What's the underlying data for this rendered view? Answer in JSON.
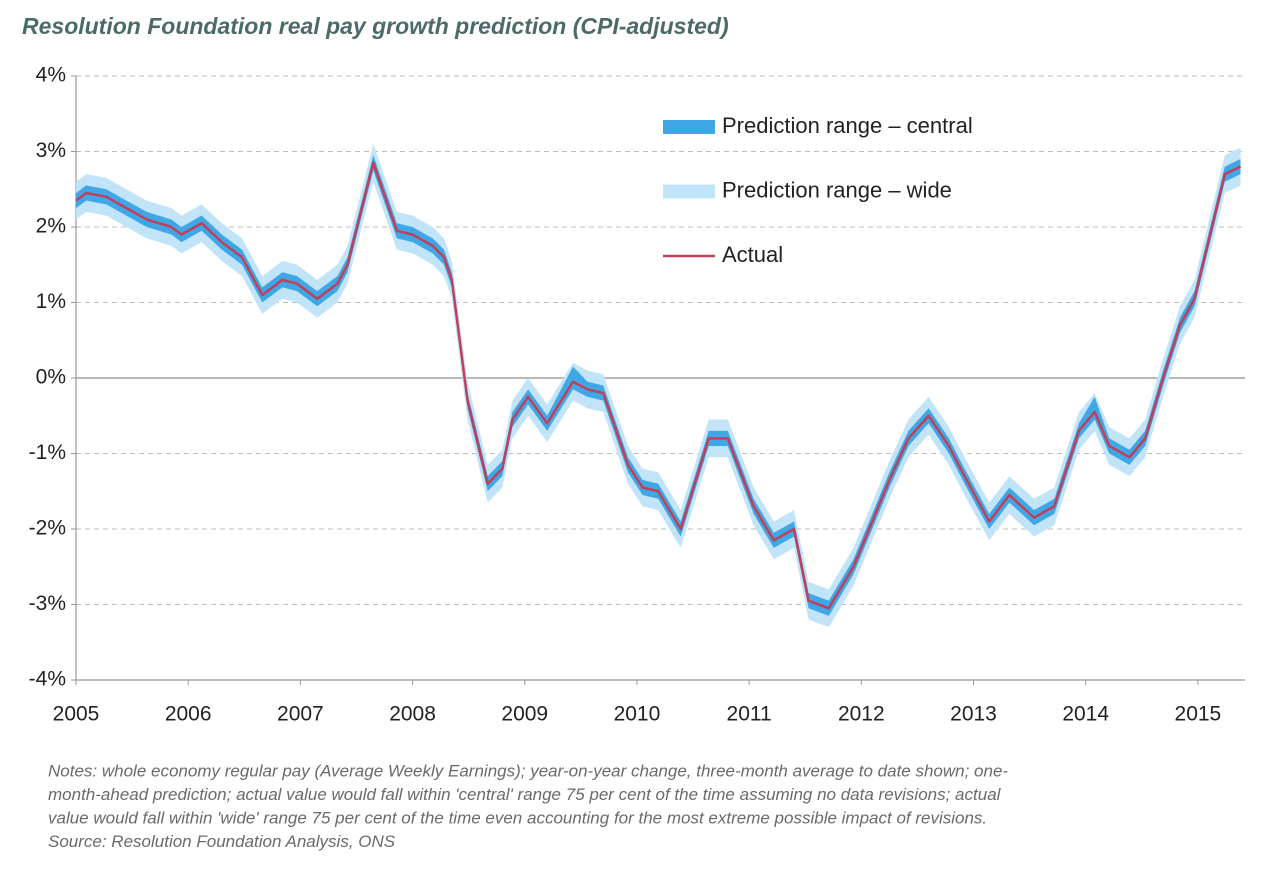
{
  "chart_data": {
    "type": "line",
    "title": "Resolution Foundation real pay growth prediction (CPI-adjusted)",
    "notes": [
      "Notes: whole economy regular pay (Average Weekly Earnings); year-on-year change, three-month average to date shown; one-",
      "month-ahead prediction; actual value would fall within 'central' range 75 per cent of the time assuming no data revisions; actual",
      "value would fall within 'wide' range 75 per cent of the time even accounting for the most extreme possible impact of revisions.",
      "Source: Resolution Foundation Analysis, ONS"
    ],
    "x": [
      2005.0,
      2005.09,
      2005.27,
      2005.45,
      2005.63,
      2005.85,
      2005.94,
      2006.12,
      2006.3,
      2006.48,
      2006.66,
      2006.84,
      2006.97,
      2007.15,
      2007.33,
      2007.42,
      2007.65,
      2007.86,
      2008.0,
      2008.18,
      2008.28,
      2008.35,
      2008.49,
      2008.67,
      2008.8,
      2008.89,
      2009.03,
      2009.2,
      2009.43,
      2009.56,
      2009.7,
      2009.92,
      2010.05,
      2010.19,
      2010.39,
      2010.64,
      2010.81,
      2011.04,
      2011.22,
      2011.4,
      2011.53,
      2011.71,
      2011.93,
      2012.07,
      2012.25,
      2012.42,
      2012.6,
      2012.78,
      2012.92,
      2013.14,
      2013.32,
      2013.54,
      2013.72,
      2013.94,
      2014.08,
      2014.21,
      2014.39,
      2014.53,
      2014.69,
      2014.84,
      2014.97,
      2015.24,
      2015.38
    ],
    "series": [
      {
        "name": "Prediction range – wide",
        "color": "#c2e4f8",
        "lower": [
          2.1,
          2.2,
          2.15,
          2.0,
          1.85,
          1.75,
          1.65,
          1.8,
          1.55,
          1.35,
          0.85,
          1.05,
          1.0,
          0.8,
          1.0,
          1.25,
          2.6,
          1.7,
          1.65,
          1.5,
          1.35,
          1.05,
          -0.55,
          -1.65,
          -1.45,
          -0.8,
          -0.5,
          -0.85,
          -0.3,
          -0.4,
          -0.45,
          -1.4,
          -1.7,
          -1.75,
          -2.25,
          -1.05,
          -1.05,
          -1.95,
          -2.4,
          -2.25,
          -3.2,
          -3.3,
          -2.75,
          -2.25,
          -1.6,
          -1.05,
          -0.75,
          -1.15,
          -1.55,
          -2.15,
          -1.8,
          -2.1,
          -1.95,
          -0.95,
          -0.7,
          -1.15,
          -1.3,
          -1.05,
          -0.25,
          0.45,
          0.8,
          2.45,
          2.55
        ],
        "upper": [
          2.6,
          2.7,
          2.65,
          2.5,
          2.35,
          2.25,
          2.15,
          2.3,
          2.05,
          1.85,
          1.35,
          1.55,
          1.5,
          1.3,
          1.5,
          1.75,
          3.1,
          2.2,
          2.15,
          2.0,
          1.85,
          1.55,
          -0.05,
          -1.15,
          -0.95,
          -0.3,
          0.0,
          -0.35,
          0.2,
          0.1,
          0.05,
          -0.9,
          -1.2,
          -1.25,
          -1.75,
          -0.55,
          -0.55,
          -1.45,
          -1.9,
          -1.75,
          -2.7,
          -2.8,
          -2.25,
          -1.75,
          -1.1,
          -0.55,
          -0.25,
          -0.65,
          -1.05,
          -1.65,
          -1.3,
          -1.6,
          -1.45,
          -0.45,
          -0.2,
          -0.65,
          -0.8,
          -0.55,
          0.25,
          0.95,
          1.3,
          2.95,
          3.05
        ]
      },
      {
        "name": "Prediction range – central",
        "color": "#3fa7e6",
        "lower": [
          2.25,
          2.35,
          2.3,
          2.15,
          2.0,
          1.9,
          1.8,
          1.95,
          1.7,
          1.5,
          1.0,
          1.2,
          1.15,
          0.95,
          1.15,
          1.4,
          2.75,
          1.85,
          1.8,
          1.65,
          1.5,
          1.2,
          -0.4,
          -1.5,
          -1.3,
          -0.65,
          -0.35,
          -0.7,
          -0.15,
          -0.25,
          -0.3,
          -1.25,
          -1.55,
          -1.6,
          -2.1,
          -0.9,
          -0.9,
          -1.8,
          -2.25,
          -2.1,
          -3.05,
          -3.15,
          -2.6,
          -2.1,
          -1.45,
          -0.9,
          -0.6,
          -1.0,
          -1.4,
          -2.0,
          -1.65,
          -1.95,
          -1.8,
          -0.8,
          -0.55,
          -1.0,
          -1.15,
          -0.9,
          -0.1,
          0.6,
          0.95,
          2.6,
          2.7
        ],
        "upper": [
          2.45,
          2.55,
          2.5,
          2.35,
          2.2,
          2.1,
          2.0,
          2.15,
          1.9,
          1.7,
          1.2,
          1.4,
          1.35,
          1.15,
          1.35,
          1.6,
          2.95,
          2.05,
          2.0,
          1.85,
          1.7,
          1.4,
          -0.2,
          -1.3,
          -1.1,
          -0.45,
          -0.15,
          -0.5,
          0.15,
          -0.05,
          -0.1,
          -1.05,
          -1.35,
          -1.4,
          -1.9,
          -0.7,
          -0.7,
          -1.6,
          -2.05,
          -1.9,
          -2.85,
          -2.95,
          -2.4,
          -1.9,
          -1.25,
          -0.7,
          -0.4,
          -0.8,
          -1.2,
          -1.8,
          -1.45,
          -1.75,
          -1.6,
          -0.6,
          -0.25,
          -0.8,
          -0.95,
          -0.7,
          0.1,
          0.8,
          1.15,
          2.8,
          2.9
        ]
      },
      {
        "name": "Actual",
        "color": "#c0405a",
        "values": [
          2.35,
          2.45,
          2.4,
          2.25,
          2.1,
          2.0,
          1.9,
          2.05,
          1.8,
          1.6,
          1.1,
          1.3,
          1.25,
          1.05,
          1.25,
          1.5,
          2.85,
          1.95,
          1.9,
          1.75,
          1.6,
          1.3,
          -0.3,
          -1.4,
          -1.2,
          -0.55,
          -0.25,
          -0.6,
          -0.05,
          -0.15,
          -0.2,
          -1.15,
          -1.45,
          -1.5,
          -2.0,
          -0.8,
          -0.8,
          -1.7,
          -2.15,
          -2.0,
          -2.95,
          -3.05,
          -2.5,
          -2.0,
          -1.35,
          -0.8,
          -0.5,
          -0.9,
          -1.3,
          -1.9,
          -1.55,
          -1.85,
          -1.7,
          -0.7,
          -0.45,
          -0.9,
          -1.05,
          -0.8,
          0.0,
          0.7,
          1.05,
          2.7,
          2.8
        ]
      }
    ],
    "legend_order": [
      1,
      0,
      2
    ],
    "xlim": [
      2005,
      2015.42
    ],
    "xticks": [
      2005,
      2006,
      2007,
      2008,
      2009,
      2010,
      2011,
      2012,
      2013,
      2014,
      2015
    ],
    "ylim": [
      -4,
      4
    ],
    "yticks": [
      {
        "value": -4,
        "label": "-4%"
      },
      {
        "value": -3,
        "label": "-3%"
      },
      {
        "value": -2,
        "label": "-2%"
      },
      {
        "value": -1,
        "label": "-1%"
      },
      {
        "value": 0,
        "label": "0%"
      },
      {
        "value": 1,
        "label": "1%"
      },
      {
        "value": 2,
        "label": "2%"
      },
      {
        "value": 3,
        "label": "3%"
      },
      {
        "value": 4,
        "label": "4%"
      }
    ],
    "grid": true,
    "legend": "upper right"
  }
}
